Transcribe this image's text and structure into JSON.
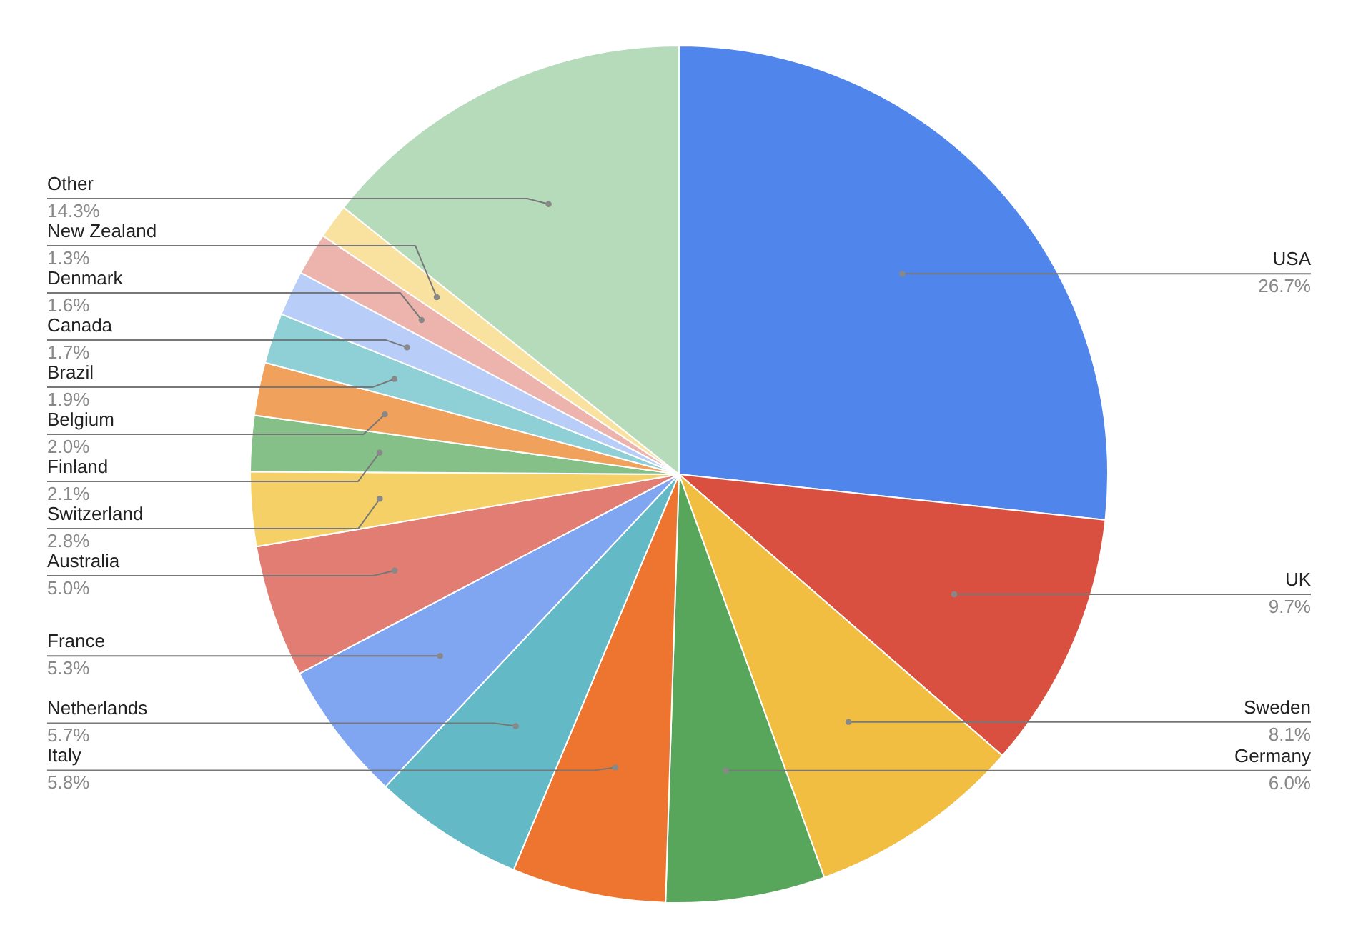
{
  "chart_data": {
    "type": "pie",
    "categories": [
      "USA",
      "UK",
      "Sweden",
      "Germany",
      "Italy",
      "Netherlands",
      "France",
      "Australia",
      "Switzerland",
      "Finland",
      "Belgium",
      "Brazil",
      "Canada",
      "Denmark",
      "New Zealand",
      "Other"
    ],
    "values": [
      26.7,
      9.7,
      8.1,
      6.0,
      5.8,
      5.7,
      5.3,
      5.0,
      2.8,
      2.1,
      2.0,
      1.9,
      1.7,
      1.6,
      1.3,
      14.3
    ],
    "value_labels": [
      "26.7%",
      "9.7%",
      "8.1%",
      "6.0%",
      "5.8%",
      "5.7%",
      "5.3%",
      "5.0%",
      "2.8%",
      "2.1%",
      "2.0%",
      "1.9%",
      "1.7%",
      "1.6%",
      "1.3%",
      "14.3%"
    ],
    "colors": [
      "#5085ec",
      "#d95040",
      "#f1be42",
      "#58a65c",
      "#ed752f",
      "#63b9c6",
      "#80a6f2",
      "#e17d72",
      "#f5d066",
      "#84c087",
      "#f0a15c",
      "#8fd0d6",
      "#b8cdf8",
      "#edb4ae",
      "#f9e29f",
      "#b6dbbb"
    ]
  }
}
